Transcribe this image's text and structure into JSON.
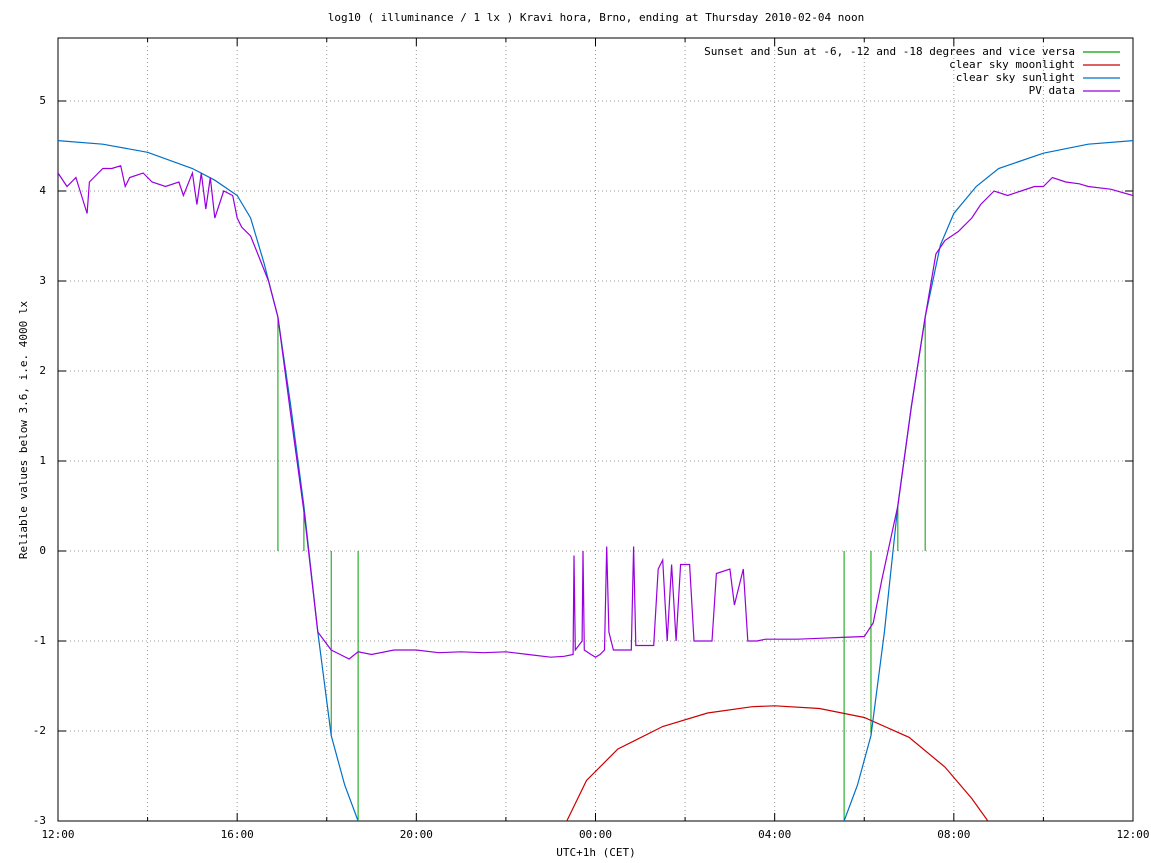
{
  "chart_data": {
    "type": "line",
    "title": "log10 ( illuminance / 1 lx ) Kravi hora, Brno, ending at Thursday 2010-02-04 noon",
    "x_label": "UTC+1h (CET)",
    "y_label": "Reliable values below 3.6, i.e. 4000 lx",
    "xlim": [
      0,
      24
    ],
    "xticks": [
      {
        "value": 0,
        "label": "12:00"
      },
      {
        "value": 4,
        "label": "16:00"
      },
      {
        "value": 8,
        "label": "20:00"
      },
      {
        "value": 12,
        "label": "00:00"
      },
      {
        "value": 16,
        "label": "04:00"
      },
      {
        "value": 20,
        "label": "08:00"
      },
      {
        "value": 24,
        "label": "12:00"
      }
    ],
    "xminorticks": [
      2,
      6,
      10,
      14,
      18,
      22
    ],
    "ylim": [
      -3,
      5.7
    ],
    "yticks": [
      -3,
      -2,
      -1,
      0,
      1,
      2,
      3,
      4,
      5
    ],
    "grid": true,
    "legend": "top right",
    "series": [
      {
        "name": "Sunset and Sun at -6, -12 and -18 degrees and vice versa",
        "color": "#00a000",
        "style": "impulses",
        "x": [
          4.91,
          5.49,
          6.1,
          6.7,
          17.55,
          18.15,
          18.75,
          19.36
        ],
        "values": [
          2.6,
          0.5,
          -2.05,
          -3,
          -3,
          -2.05,
          0.5,
          2.6
        ]
      },
      {
        "name": "clear sky moonlight",
        "color": "#cc0000",
        "style": "line",
        "x": [
          11.36,
          11.8,
          12.5,
          13.5,
          14.5,
          15.5,
          16.0,
          17,
          18,
          19,
          19.8,
          20.4,
          20.76
        ],
        "values": [
          -3,
          -2.55,
          -2.2,
          -1.95,
          -1.8,
          -1.73,
          -1.72,
          -1.75,
          -1.85,
          -2.07,
          -2.4,
          -2.75,
          -3
        ]
      },
      {
        "name": "clear sky sunlight",
        "color": "#0070c8",
        "style": "line",
        "x": [
          0,
          1,
          2,
          3,
          3.5,
          4,
          4.3,
          4.6,
          4.91,
          5.2,
          5.49,
          5.8,
          6.1,
          6.4,
          6.7,
          12,
          17.55,
          17.85,
          18.15,
          18.45,
          18.75,
          19.05,
          19.36,
          19.7,
          20.0,
          20.5,
          21,
          22,
          23,
          24
        ],
        "values": [
          4.56,
          4.52,
          4.43,
          4.25,
          4.12,
          3.95,
          3.7,
          3.2,
          2.6,
          1.6,
          0.5,
          -0.9,
          -2.05,
          -2.6,
          -3,
          null,
          -3,
          -2.6,
          -2.05,
          -0.9,
          0.5,
          1.6,
          2.6,
          3.4,
          3.75,
          4.05,
          4.25,
          4.42,
          4.52,
          4.56
        ]
      },
      {
        "name": "PV data",
        "color": "#9900dd",
        "style": "line",
        "x": [
          0,
          0.2,
          0.4,
          0.65,
          0.7,
          0.9,
          1.0,
          1.2,
          1.4,
          1.5,
          1.6,
          1.9,
          2.1,
          2.4,
          2.7,
          2.8,
          3.0,
          3.1,
          3.2,
          3.3,
          3.4,
          3.5,
          3.7,
          3.9,
          4.0,
          4.1,
          4.3,
          4.5,
          4.7,
          4.91,
          5.2,
          5.5,
          5.8,
          6.1,
          6.3,
          6.5,
          6.7,
          7.0,
          7.5,
          8,
          8.5,
          9,
          9.5,
          10,
          10.5,
          11,
          11.3,
          11.5,
          11.52,
          11.55,
          11.7,
          11.72,
          11.75,
          11.9,
          12.0,
          12.1,
          12.2,
          12.25,
          12.3,
          12.4,
          12.8,
          12.85,
          12.9,
          13.3,
          13.4,
          13.5,
          13.6,
          13.7,
          13.8,
          13.9,
          14.1,
          14.2,
          14.5,
          14.6,
          14.7,
          15.0,
          15.1,
          15.3,
          15.4,
          15.6,
          15.8,
          16.5,
          17,
          17.5,
          18,
          18.2,
          18.4,
          18.75,
          19.05,
          19.36,
          19.6,
          19.8,
          20.1,
          20.4,
          20.6,
          20.9,
          21.2,
          21.5,
          21.8,
          22.0,
          22.2,
          22.5,
          22.8,
          23,
          23.5,
          24
        ],
        "values": [
          4.2,
          4.05,
          4.15,
          3.75,
          4.1,
          4.2,
          4.25,
          4.25,
          4.28,
          4.05,
          4.15,
          4.2,
          4.1,
          4.05,
          4.1,
          3.95,
          4.2,
          3.85,
          4.2,
          3.8,
          4.15,
          3.7,
          4.0,
          3.95,
          3.7,
          3.6,
          3.5,
          3.25,
          3.0,
          2.6,
          1.5,
          0.4,
          -0.9,
          -1.1,
          -1.15,
          -1.2,
          -1.12,
          -1.15,
          -1.1,
          -1.1,
          -1.13,
          -1.12,
          -1.13,
          -1.12,
          -1.15,
          -1.18,
          -1.17,
          -1.15,
          -0.05,
          -1.1,
          -1.0,
          0.0,
          -1.1,
          -1.15,
          -1.18,
          -1.15,
          -1.1,
          0.05,
          -0.9,
          -1.1,
          -1.1,
          0.05,
          -1.05,
          -1.05,
          -0.2,
          -0.1,
          -1.0,
          -0.15,
          -1.0,
          -0.15,
          -0.15,
          -1.0,
          -1.0,
          -1.0,
          -0.25,
          -0.2,
          -0.6,
          -0.2,
          -1.0,
          -1.0,
          -0.98,
          -0.98,
          -0.97,
          -0.96,
          -0.95,
          -0.8,
          -0.3,
          0.5,
          1.6,
          2.6,
          3.3,
          3.45,
          3.55,
          3.7,
          3.85,
          4.0,
          3.95,
          4.0,
          4.05,
          4.05,
          4.15,
          4.1,
          4.08,
          4.05,
          4.02,
          3.95
        ]
      }
    ]
  }
}
